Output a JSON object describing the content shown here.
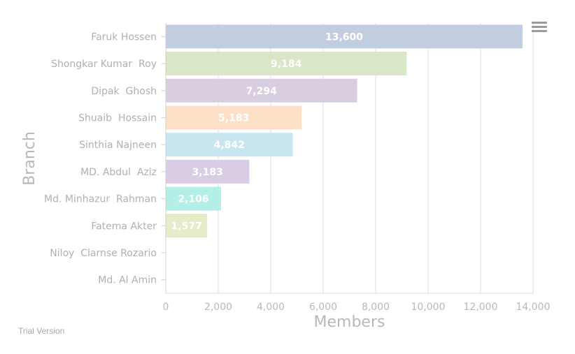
{
  "chart_data": {
    "type": "bar",
    "orientation": "horizontal",
    "title": "",
    "xlabel": "Members",
    "ylabel": "Branch",
    "categories": [
      "Faruk Hossen",
      "Shongkar Kumar  Roy",
      "Dipak  Ghosh",
      "Shuaib  Hossain",
      "Sinthia Najneen",
      "MD. Abdul  Aziz",
      "Md. Minhazur  Rahman",
      "Fatema Akter",
      "Niloy  Clarnse Rozario",
      "Md. Al Amin"
    ],
    "values": [
      13600,
      9184,
      7294,
      5183,
      4842,
      3183,
      2106,
      1577,
      0,
      0
    ],
    "value_labels": [
      "13,600",
      "9,184",
      "7,294",
      "5,183",
      "4,842",
      "3,183",
      "2,106",
      "1,577",
      "",
      ""
    ],
    "colors": [
      "#c3cde0",
      "#d9e6c8",
      "#d9cde0",
      "#fde0c8",
      "#c8e6ef",
      "#d9cde6",
      "#b3efe6",
      "#e6ebc8",
      "#cccccc",
      "#cccccc"
    ],
    "xlim": [
      0,
      14000
    ],
    "xticks": [
      0,
      2000,
      4000,
      6000,
      8000,
      10000,
      12000,
      14000
    ],
    "xtick_labels": [
      "0",
      "2,000",
      "4,000",
      "6,000",
      "8,000",
      "10,000",
      "12,000",
      "14,000"
    ],
    "grid": true,
    "legend": "none"
  },
  "footer": {
    "watermark": "Trial Version"
  },
  "menu": {
    "icon": "hamburger-menu-icon"
  }
}
